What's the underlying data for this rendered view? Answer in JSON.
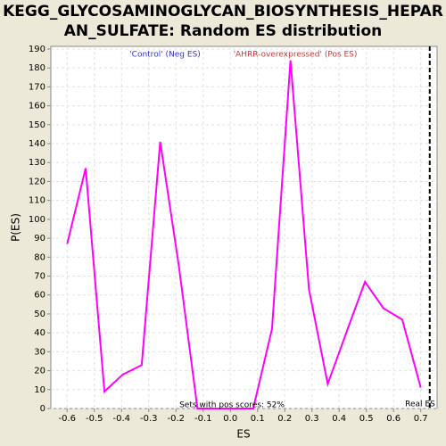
{
  "chart_data": {
    "type": "line",
    "title": [
      "KEGG_GLYCOSAMINOGLYCAN_BIOSYNTHESIS_HEPAR",
      "AN_SULFATE: Random ES distribution"
    ],
    "x_label": "ES",
    "y_label": "P(ES)",
    "legend": [
      "'Control' (Neg ES)",
      "'AHRR-overexpressed' (Pos ES)"
    ],
    "legend_colors": [
      "#3333cc",
      "#cc3333"
    ],
    "annotation": "Sets with pos scores: 52%",
    "real_es": {
      "label": "Real ES",
      "value": 0.733
    },
    "x": [
      -0.6,
      -0.532,
      -0.463,
      -0.395,
      -0.326,
      -0.258,
      -0.189,
      -0.121,
      -0.053,
      0.016,
      0.084,
      0.153,
      0.221,
      0.289,
      0.358,
      0.426,
      0.495,
      0.563,
      0.632,
      0.7
    ],
    "series": [
      {
        "color": "#ff00ff",
        "values": [
          87,
          127,
          9,
          18,
          23,
          141,
          75,
          0,
          0,
          0,
          0,
          42,
          184,
          63,
          13,
          40,
          67,
          53,
          47,
          11
        ]
      }
    ],
    "xlim": [
      -0.66,
      0.76
    ],
    "xticks": [
      -0.6,
      -0.5,
      -0.4,
      -0.3,
      -0.2,
      -0.1,
      {
        "value": 0,
        "label": "0.0"
      },
      0.1,
      0.2,
      0.3,
      0.4,
      0.5,
      0.6,
      0.7
    ],
    "ylim": [
      0,
      191.4
    ],
    "yticks": [
      0,
      10,
      20,
      30,
      40,
      50,
      60,
      70,
      80,
      90,
      100,
      110,
      120,
      130,
      140,
      150,
      160,
      170,
      180,
      190
    ],
    "grid": true
  }
}
